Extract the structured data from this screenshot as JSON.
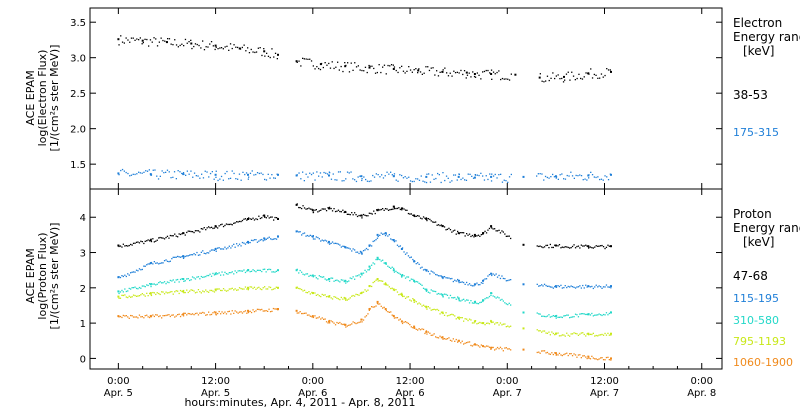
{
  "chart_data": [
    {
      "type": "scatter",
      "ylabel_line1": "ACE EPAM",
      "ylabel_line2": "log(Electron Flux)",
      "ylabel_line3": "[1/(cm²s ster MeV)]",
      "legend_title_line1": "Electron",
      "legend_title_line2": "Energy range",
      "legend_unit": "[keV]",
      "ylim": [
        1.15,
        3.7
      ],
      "yticks": [
        "1.5",
        "2.0",
        "2.5",
        "3.0",
        "3.5"
      ],
      "series": [
        {
          "name": "38-53",
          "color": "#000000",
          "points": [
            [
              0,
              3.26
            ],
            [
              3,
              3.24
            ],
            [
              6,
              3.22
            ],
            [
              9,
              3.2
            ],
            [
              12,
              3.17
            ],
            [
              15,
              3.13
            ],
            [
              18,
              3.09
            ],
            [
              19.7,
              3.04
            ],
            [
              22,
              2.95
            ],
            [
              25,
              2.91
            ],
            [
              28,
              2.88
            ],
            [
              31,
              2.86
            ],
            [
              34,
              2.84
            ],
            [
              37,
              2.82
            ],
            [
              40,
              2.8
            ],
            [
              43,
              2.79
            ],
            [
              44,
              2.77
            ],
            [
              46,
              2.77
            ],
            [
              49,
              2.76
            ],
            [
              52,
              2.72
            ],
            [
              55,
              2.73
            ],
            [
              58,
              2.78
            ],
            [
              60.8,
              2.8
            ]
          ]
        },
        {
          "name": "175-315",
          "color": "#1f7fd8",
          "points": [
            [
              0,
              1.37
            ],
            [
              4,
              1.36
            ],
            [
              8,
              1.36
            ],
            [
              12,
              1.35
            ],
            [
              16,
              1.35
            ],
            [
              19.7,
              1.35
            ],
            [
              22,
              1.34
            ],
            [
              26,
              1.34
            ],
            [
              30,
              1.33
            ],
            [
              34,
              1.33
            ],
            [
              38,
              1.32
            ],
            [
              42,
              1.32
            ],
            [
              44,
              1.31
            ],
            [
              46,
              1.32
            ],
            [
              50,
              1.32
            ],
            [
              54,
              1.33
            ],
            [
              58,
              1.34
            ],
            [
              60.8,
              1.35
            ]
          ]
        }
      ]
    },
    {
      "type": "scatter",
      "ylabel_line1": "ACE EPAM",
      "ylabel_line2": "log(Proton Flux)",
      "ylabel_line3": "[1/(cm²s ster MeV)]",
      "legend_title_line1": "Proton",
      "legend_title_line2": "Energy range",
      "legend_unit": "[keV]",
      "ylim": [
        -0.3,
        4.8
      ],
      "yticks": [
        "0",
        "1",
        "2",
        "3",
        "4"
      ],
      "series": [
        {
          "name": "47-68",
          "color": "#000000",
          "points": [
            [
              0,
              3.2
            ],
            [
              4,
              3.35
            ],
            [
              8,
              3.55
            ],
            [
              12,
              3.75
            ],
            [
              16,
              3.95
            ],
            [
              18,
              4.05
            ],
            [
              19.7,
              3.95
            ],
            [
              22,
              4.35
            ],
            [
              24,
              4.2
            ],
            [
              26,
              4.25
            ],
            [
              28,
              4.15
            ],
            [
              30,
              4.05
            ],
            [
              32,
              4.2
            ],
            [
              34,
              4.3
            ],
            [
              35,
              4.25
            ],
            [
              36.5,
              4.05
            ],
            [
              38,
              3.95
            ],
            [
              40,
              3.75
            ],
            [
              42,
              3.55
            ],
            [
              44,
              3.5
            ],
            [
              45,
              3.55
            ],
            [
              46,
              3.75
            ],
            [
              50,
              3.22
            ],
            [
              54,
              3.2
            ],
            [
              58,
              3.18
            ],
            [
              60.8,
              3.18
            ]
          ]
        },
        {
          "name": "115-195",
          "color": "#1f7fd8",
          "points": [
            [
              0,
              2.3
            ],
            [
              4,
              2.7
            ],
            [
              8,
              2.9
            ],
            [
              12,
              3.1
            ],
            [
              16,
              3.3
            ],
            [
              18,
              3.4
            ],
            [
              19.7,
              3.45
            ],
            [
              22,
              3.6
            ],
            [
              24,
              3.45
            ],
            [
              26,
              3.3
            ],
            [
              28,
              3.15
            ],
            [
              30,
              3.0
            ],
            [
              31,
              3.2
            ],
            [
              32,
              3.5
            ],
            [
              33,
              3.55
            ],
            [
              34,
              3.35
            ],
            [
              35,
              3.1
            ],
            [
              36.5,
              2.75
            ],
            [
              38,
              2.5
            ],
            [
              40,
              2.3
            ],
            [
              42,
              2.2
            ],
            [
              44,
              2.1
            ],
            [
              45,
              2.2
            ],
            [
              46,
              2.4
            ],
            [
              50,
              2.1
            ],
            [
              54,
              2.05
            ],
            [
              58,
              2.05
            ],
            [
              60.8,
              2.05
            ]
          ]
        },
        {
          "name": "310-580",
          "color": "#22d8c8",
          "points": [
            [
              0,
              1.9
            ],
            [
              4,
              2.1
            ],
            [
              8,
              2.25
            ],
            [
              12,
              2.4
            ],
            [
              16,
              2.5
            ],
            [
              19.7,
              2.5
            ],
            [
              22,
              2.5
            ],
            [
              24,
              2.35
            ],
            [
              26,
              2.25
            ],
            [
              28,
              2.2
            ],
            [
              30,
              2.4
            ],
            [
              31,
              2.6
            ],
            [
              32,
              2.85
            ],
            [
              33,
              2.7
            ],
            [
              34,
              2.5
            ],
            [
              35,
              2.35
            ],
            [
              36.5,
              2.2
            ],
            [
              38,
              1.95
            ],
            [
              40,
              1.8
            ],
            [
              42,
              1.7
            ],
            [
              44,
              1.6
            ],
            [
              45,
              1.65
            ],
            [
              46,
              1.85
            ],
            [
              50,
              1.3
            ],
            [
              54,
              1.2
            ],
            [
              58,
              1.25
            ],
            [
              60.8,
              1.3
            ]
          ]
        },
        {
          "name": "795-1193",
          "color": "#c8e818",
          "points": [
            [
              0,
              1.75
            ],
            [
              4,
              1.85
            ],
            [
              8,
              1.9
            ],
            [
              12,
              1.95
            ],
            [
              16,
              2.0
            ],
            [
              19.7,
              2.0
            ],
            [
              22,
              2.0
            ],
            [
              24,
              1.85
            ],
            [
              26,
              1.75
            ],
            [
              28,
              1.7
            ],
            [
              30,
              1.85
            ],
            [
              31,
              2.05
            ],
            [
              32,
              2.25
            ],
            [
              33,
              2.1
            ],
            [
              34,
              1.95
            ],
            [
              35,
              1.8
            ],
            [
              36.5,
              1.65
            ],
            [
              38,
              1.45
            ],
            [
              40,
              1.3
            ],
            [
              42,
              1.15
            ],
            [
              44,
              1.05
            ],
            [
              45,
              1.0
            ],
            [
              46,
              1.05
            ],
            [
              50,
              0.85
            ],
            [
              54,
              0.7
            ],
            [
              58,
              0.7
            ],
            [
              60.8,
              0.7
            ]
          ]
        },
        {
          "name": "1060-1900",
          "color": "#f08a1c",
          "points": [
            [
              0,
              1.2
            ],
            [
              4,
              1.2
            ],
            [
              8,
              1.25
            ],
            [
              12,
              1.3
            ],
            [
              16,
              1.35
            ],
            [
              19.7,
              1.4
            ],
            [
              22,
              1.35
            ],
            [
              24,
              1.2
            ],
            [
              26,
              1.05
            ],
            [
              28,
              0.95
            ],
            [
              30,
              1.1
            ],
            [
              31,
              1.4
            ],
            [
              32,
              1.6
            ],
            [
              33,
              1.4
            ],
            [
              34,
              1.2
            ],
            [
              35,
              1.05
            ],
            [
              36.5,
              0.9
            ],
            [
              38,
              0.75
            ],
            [
              40,
              0.6
            ],
            [
              42,
              0.5
            ],
            [
              44,
              0.4
            ],
            [
              45,
              0.35
            ],
            [
              46,
              0.3
            ],
            [
              50,
              0.25
            ],
            [
              54,
              0.15
            ],
            [
              58,
              0.05
            ],
            [
              60.8,
              0.0
            ]
          ]
        }
      ]
    }
  ],
  "xaxis": {
    "ticks": [
      {
        "hour": 0,
        "time": "0:00",
        "date": "Apr. 5"
      },
      {
        "hour": 12,
        "time": "12:00",
        "date": "Apr. 5"
      },
      {
        "hour": 24,
        "time": "0:00",
        "date": "Apr. 6"
      },
      {
        "hour": 36,
        "time": "12:00",
        "date": "Apr. 6"
      },
      {
        "hour": 48,
        "time": "0:00",
        "date": "Apr. 7"
      },
      {
        "hour": 60,
        "time": "12:00",
        "date": "Apr. 7"
      },
      {
        "hour": 72,
        "time": "0:00",
        "date": "Apr. 8"
      }
    ],
    "xlabel": "hours:minutes, Apr.  4, 2011 - Apr.  8, 2011",
    "xlim": [
      -3.5,
      74.5
    ],
    "gaps": [
      [
        19.7,
        22
      ],
      [
        48.5,
        51.5
      ]
    ]
  }
}
